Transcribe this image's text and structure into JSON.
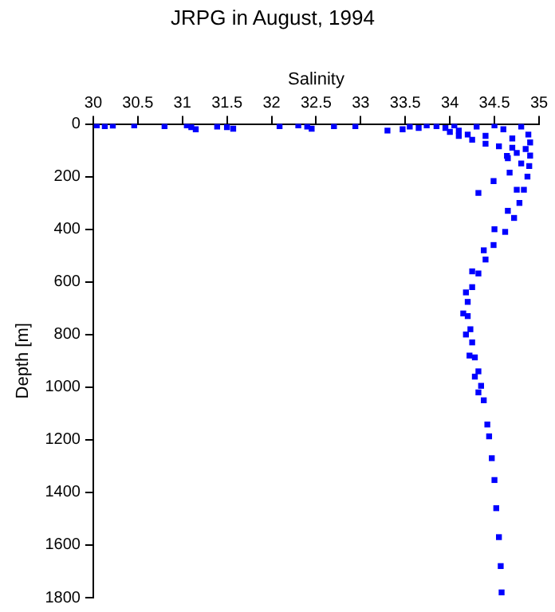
{
  "chart_data": {
    "type": "scatter",
    "title": "JRPG in August, 1994",
    "xlabel": "Salinity",
    "ylabel": "Depth [m]",
    "xlim": [
      30,
      35
    ],
    "xticks": [
      30,
      30.5,
      31,
      31.5,
      32,
      32.5,
      33,
      33.5,
      34,
      34.5,
      35
    ],
    "ylim": [
      1800,
      0
    ],
    "yticks": [
      0,
      200,
      400,
      600,
      800,
      1000,
      1200,
      1400,
      1600,
      1800
    ],
    "grid": false,
    "legend": false,
    "marker": "square",
    "series": [
      {
        "color": "#0000ff",
        "x": [
          30.04,
          30.13,
          30.22,
          30.46,
          30.8,
          31.05,
          31.1,
          31.15,
          31.39,
          31.5,
          31.57,
          32.09,
          32.3,
          32.4,
          32.45,
          32.7,
          32.94,
          33.3,
          33.47,
          33.55,
          33.65,
          33.74,
          33.85,
          33.95,
          34.05,
          34.1,
          34.2,
          34.3,
          34.4,
          34.5,
          34.6,
          34.7,
          34.8,
          34.0,
          34.1,
          34.25,
          34.4,
          34.55,
          34.7,
          34.85,
          34.9,
          34.88,
          34.75,
          34.65,
          34.9,
          34.89,
          34.87,
          34.83,
          34.78,
          34.72,
          34.62,
          34.49,
          34.4,
          34.32,
          34.25,
          34.2,
          34.2,
          34.23,
          34.25,
          34.28,
          34.32,
          34.35,
          34.38,
          34.42,
          34.44,
          34.47,
          34.5,
          34.52,
          34.55,
          34.57,
          34.58,
          34.8,
          34.75,
          34.65,
          34.5,
          34.38,
          34.25,
          34.18,
          34.15,
          34.18,
          34.22,
          34.28,
          34.32,
          34.64,
          34.67,
          34.49,
          34.32
        ],
        "values": [
          5,
          8,
          6,
          5,
          8,
          5,
          12,
          20,
          10,
          12,
          18,
          8,
          5,
          10,
          18,
          8,
          8,
          25,
          20,
          10,
          15,
          5,
          8,
          15,
          5,
          25,
          40,
          10,
          45,
          5,
          20,
          55,
          10,
          30,
          45,
          60,
          75,
          85,
          90,
          95,
          70,
          40,
          110,
          130,
          120,
          160,
          200,
          250,
          300,
          357,
          410,
          460,
          515,
          568,
          620,
          676,
          730,
          780,
          830,
          887,
          940,
          995,
          1050,
          1142,
          1187,
          1270,
          1353,
          1460,
          1570,
          1680,
          1780,
          150,
          250,
          330,
          400,
          480,
          560,
          640,
          720,
          800,
          880,
          960,
          1020,
          121,
          185,
          217,
          262
        ]
      }
    ]
  }
}
